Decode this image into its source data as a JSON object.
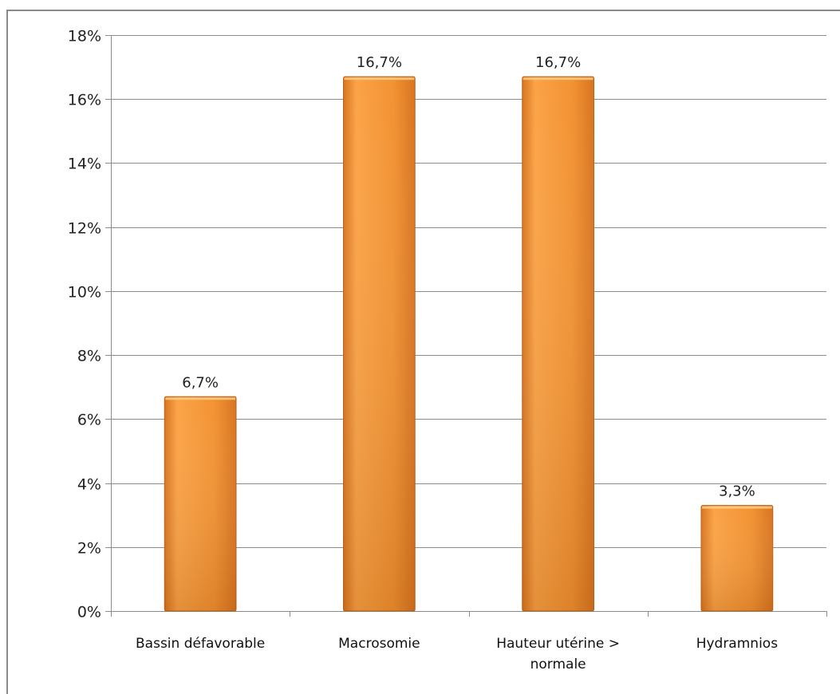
{
  "chart_data": {
    "type": "bar",
    "categories": [
      [
        "Bassin défavorable"
      ],
      [
        "Macrosomie"
      ],
      [
        "Hauteur utérine >",
        "normale"
      ],
      [
        "Hydramnios"
      ]
    ],
    "values": [
      6.7,
      16.7,
      16.7,
      3.3
    ],
    "data_labels": [
      "6,7%",
      "16,7%",
      "16,7%",
      "3,3%"
    ],
    "y_ticks": [
      "0%",
      "2%",
      "4%",
      "6%",
      "8%",
      "10%",
      "12%",
      "14%",
      "16%",
      "18%"
    ],
    "ylim": [
      0,
      18
    ],
    "y_step": 2,
    "grid": true,
    "legend": "none",
    "title": "",
    "xlabel": "",
    "ylabel": "",
    "colors": {
      "bar_light": "#fba347",
      "bar_mid": "#f29232",
      "bar_dark": "#d87420",
      "bar_edge": "#b85f14",
      "grid": "#8c8c8c"
    }
  }
}
